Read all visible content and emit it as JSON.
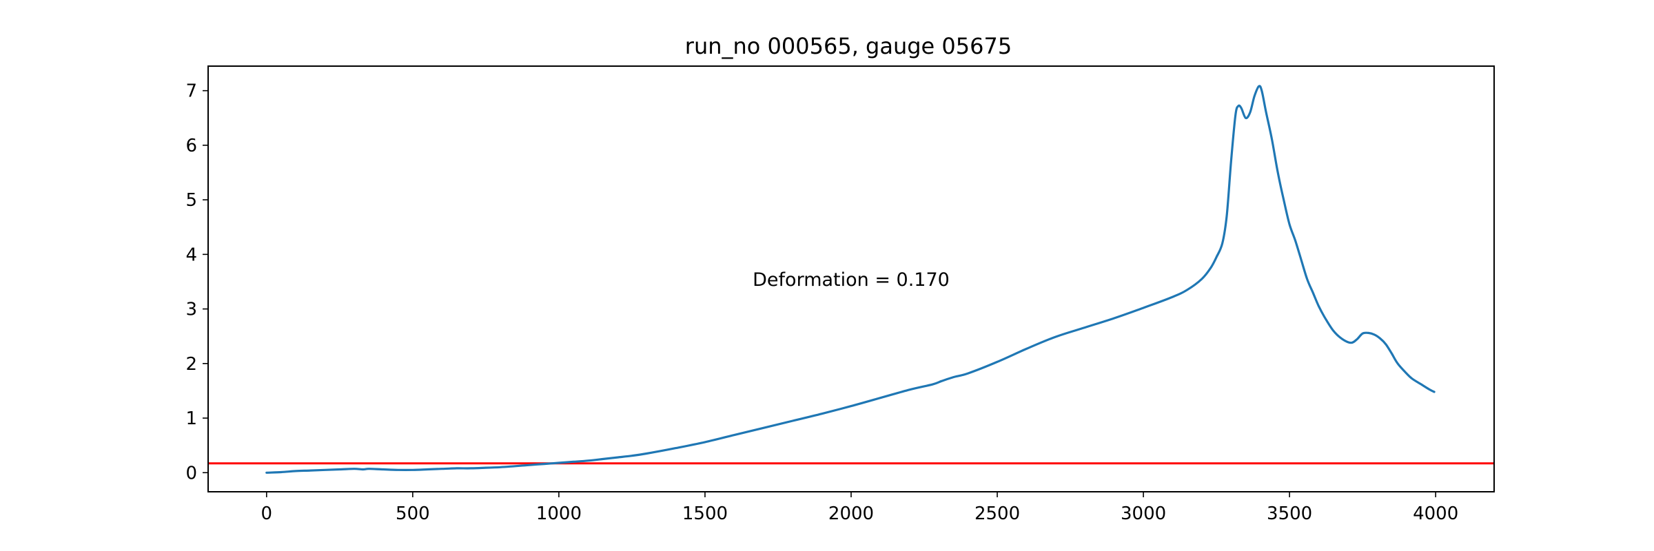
{
  "chart_data": {
    "type": "line",
    "title": "run_no 000565, gauge 05675",
    "xlabel": "",
    "ylabel": "",
    "xlim": [
      -200,
      4200
    ],
    "ylim": [
      -0.35,
      7.45
    ],
    "x_ticks": [
      0,
      500,
      1000,
      1500,
      2000,
      2500,
      3000,
      3500,
      4000
    ],
    "y_ticks": [
      0,
      1,
      2,
      3,
      4,
      5,
      6,
      7
    ],
    "grid": false,
    "legend": "none",
    "annotation": {
      "text": "Deformation = 0.170",
      "x": 2000,
      "y": 3.55
    },
    "threshold": {
      "y": 0.17,
      "color": "#ff0000"
    },
    "series": [
      {
        "color": "#1f77b4",
        "x": [
          0,
          50,
          100,
          150,
          200,
          250,
          300,
          330,
          350,
          400,
          450,
          500,
          550,
          600,
          650,
          700,
          750,
          800,
          850,
          900,
          950,
          1000,
          1050,
          1100,
          1150,
          1200,
          1250,
          1300,
          1400,
          1500,
          1600,
          1700,
          1800,
          1900,
          2000,
          2100,
          2200,
          2280,
          2310,
          2350,
          2400,
          2500,
          2600,
          2700,
          2800,
          2900,
          3000,
          3100,
          3150,
          3200,
          3230,
          3250,
          3270,
          3285,
          3300,
          3315,
          3325,
          3335,
          3350,
          3365,
          3380,
          3395,
          3405,
          3420,
          3440,
          3460,
          3480,
          3500,
          3520,
          3540,
          3560,
          3580,
          3600,
          3620,
          3650,
          3680,
          3710,
          3730,
          3750,
          3770,
          3790,
          3810,
          3830,
          3850,
          3870,
          3900,
          3920,
          3950,
          3980,
          3995
        ],
        "y": [
          0,
          0.01,
          0.03,
          0.04,
          0.05,
          0.06,
          0.07,
          0.06,
          0.07,
          0.06,
          0.05,
          0.05,
          0.06,
          0.07,
          0.08,
          0.08,
          0.09,
          0.1,
          0.12,
          0.14,
          0.16,
          0.18,
          0.2,
          0.22,
          0.25,
          0.28,
          0.31,
          0.35,
          0.45,
          0.56,
          0.69,
          0.82,
          0.95,
          1.08,
          1.22,
          1.37,
          1.52,
          1.62,
          1.68,
          1.75,
          1.82,
          2.03,
          2.27,
          2.49,
          2.66,
          2.83,
          3.02,
          3.22,
          3.35,
          3.55,
          3.75,
          3.95,
          4.2,
          4.7,
          5.7,
          6.55,
          6.72,
          6.68,
          6.5,
          6.6,
          6.9,
          7.08,
          7.0,
          6.6,
          6.1,
          5.5,
          5.0,
          4.55,
          4.25,
          3.9,
          3.55,
          3.3,
          3.05,
          2.85,
          2.6,
          2.45,
          2.38,
          2.44,
          2.55,
          2.56,
          2.53,
          2.46,
          2.35,
          2.18,
          2.0,
          1.82,
          1.72,
          1.62,
          1.52,
          1.48
        ]
      }
    ]
  }
}
